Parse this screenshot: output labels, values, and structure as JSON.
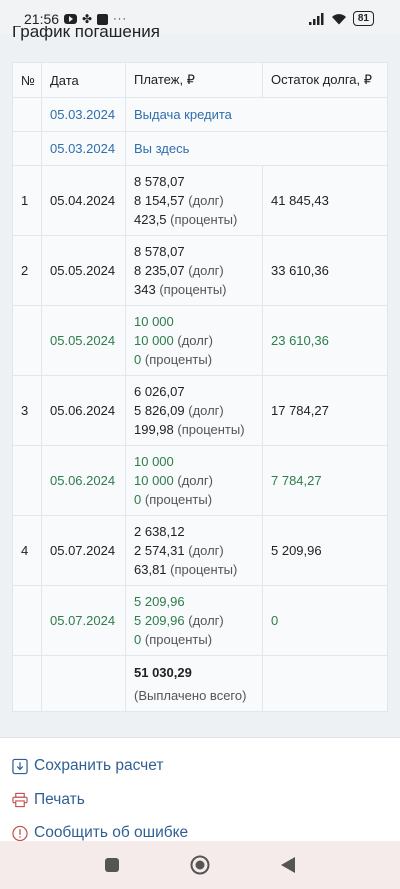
{
  "status_bar": {
    "time": "21:56",
    "dots": "···",
    "battery": "81"
  },
  "page": {
    "title": "График погашения"
  },
  "table": {
    "headers": {
      "num": "№",
      "date": "Дата",
      "payment": "Платеж, ₽",
      "balance": "Остаток долга, ₽"
    },
    "info_rows": [
      {
        "date": "05.03.2024",
        "text": "Выдача кредита"
      },
      {
        "date": "05.03.2024",
        "text": "Вы здесь"
      }
    ],
    "rows": [
      {
        "num": "1",
        "date": "05.04.2024",
        "total": "8 578,07",
        "debt": "8 154,57",
        "interest": "423,5",
        "balance": "41 845,43"
      },
      {
        "num": "2",
        "date": "05.05.2024",
        "total": "8 578,07",
        "debt": "8 235,07",
        "interest": "343",
        "balance": "33 610,36"
      },
      {
        "num": "",
        "date": "05.05.2024",
        "total": "10 000",
        "debt": "10 000",
        "interest": "0",
        "balance": "23 610,36"
      },
      {
        "num": "3",
        "date": "05.06.2024",
        "total": "6 026,07",
        "debt": "5 826,09",
        "interest": "199,98",
        "balance": "17 784,27"
      },
      {
        "num": "",
        "date": "05.06.2024",
        "total": "10 000",
        "debt": "10 000",
        "interest": "0",
        "balance": "7 784,27"
      },
      {
        "num": "4",
        "date": "05.07.2024",
        "total": "2 638,12",
        "debt": "2 574,31",
        "interest": "63,81",
        "balance": "5 209,96"
      },
      {
        "num": "",
        "date": "05.07.2024",
        "total": "5 209,96",
        "debt": "5 209,96",
        "interest": "0",
        "balance": "0"
      }
    ],
    "suffix_debt": "(долг)",
    "suffix_interest": "(проценты)",
    "total": {
      "value": "51 030,29",
      "label": "(Выплачено всего)"
    }
  },
  "actions": {
    "save": "Сохранить расчет",
    "print": "Печать",
    "report": "Сообщить об ошибке"
  },
  "colors": {
    "link": "#2f6fad",
    "prepayment_green": "#2e7d4a",
    "action_blue": "#2f5f93"
  }
}
